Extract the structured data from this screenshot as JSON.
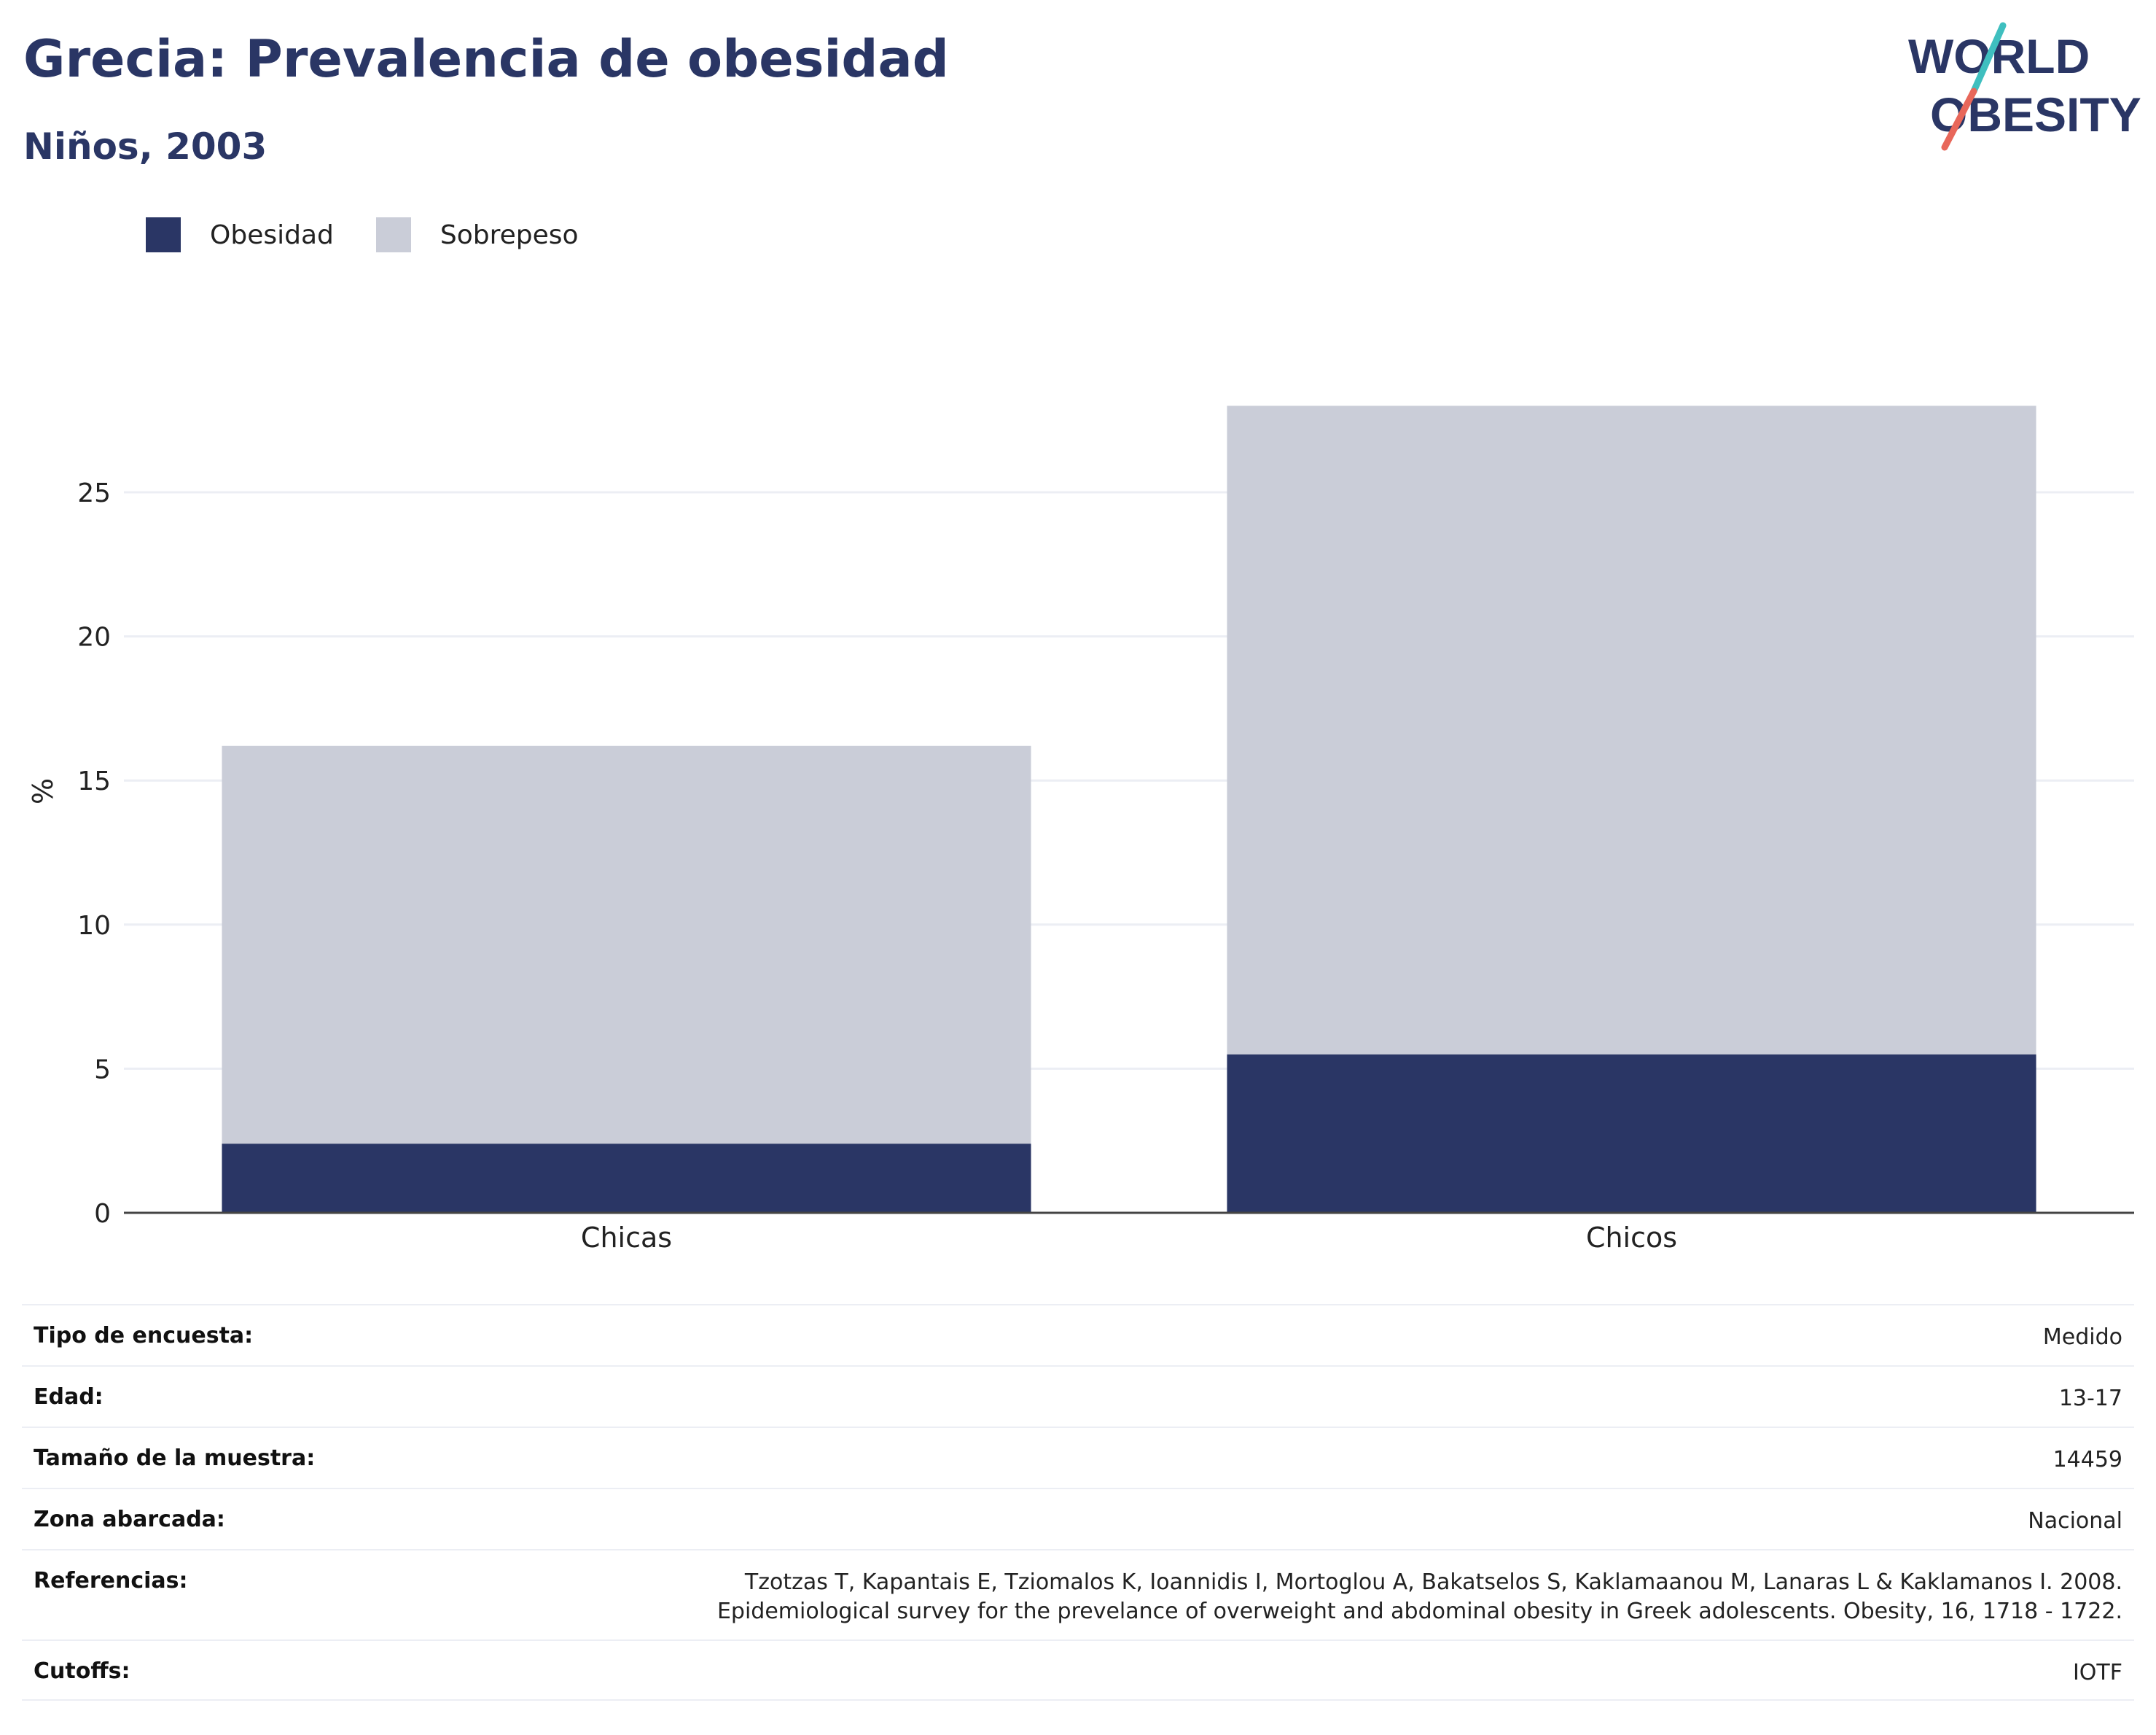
{
  "header": {
    "title": "Grecia: Prevalencia de obesidad",
    "subtitle": "Niños, 2003"
  },
  "logo": {
    "line1": "WORLD",
    "line2": "OBESITY"
  },
  "legend": [
    {
      "label": "Obesidad",
      "color": "#2a3665"
    },
    {
      "label": "Sobrepeso",
      "color": "#cacdd8"
    }
  ],
  "chart_data": {
    "type": "bar",
    "stacked": true,
    "categories": [
      "Chicas",
      "Chicos"
    ],
    "series": [
      {
        "name": "Obesidad",
        "values": [
          2.4,
          5.5
        ],
        "color": "#2a3665"
      },
      {
        "name": "Sobrepeso",
        "values": [
          13.8,
          22.5
        ],
        "color": "#cacdd8"
      }
    ],
    "ylabel": "%",
    "ylim": [
      0,
      28
    ],
    "yticks": [
      0,
      5,
      10,
      15,
      20,
      25
    ],
    "grid": true,
    "legend_position": "top-left"
  },
  "meta": [
    {
      "label": "Tipo de encuesta:",
      "value": [
        "Medido"
      ]
    },
    {
      "label": "Edad:",
      "value": [
        "13-17"
      ]
    },
    {
      "label": "Tamaño de la muestra:",
      "value": [
        "14459"
      ]
    },
    {
      "label": "Zona abarcada:",
      "value": [
        "Nacional"
      ]
    },
    {
      "label": "Referencias:",
      "value": [
        "Tzotzas T, Kapantais E, Tziomalos K, Ioannidis I, Mortoglou A, Bakatselos S, Kaklamaanou M, Lanaras L & Kaklamanos I. 2008.",
        "Epidemiological survey for the prevelance of overweight and abdominal obesity in Greek adolescents. Obesity, 16, 1718 - 1722."
      ]
    },
    {
      "label": "Cutoffs:",
      "value": [
        "IOTF"
      ]
    }
  ]
}
